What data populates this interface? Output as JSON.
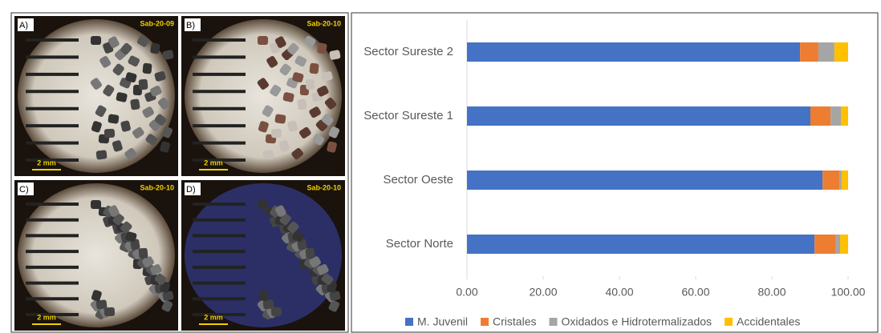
{
  "panels": [
    {
      "letter": "A)",
      "sample": "Sab-20-09",
      "scale": "2 mm"
    },
    {
      "letter": "B)",
      "sample": "Sab-20-10",
      "scale": "2 mm"
    },
    {
      "letter": "C)",
      "sample": "Sab-20-10",
      "scale": "2 mm"
    },
    {
      "letter": "D)",
      "sample": "Sab-20-10",
      "scale": "2 mm"
    }
  ],
  "chart_data": {
    "type": "stacked-barh",
    "categories": [
      "Sector Norte",
      "Sector Oeste",
      "Sector Sureste 1",
      "Sector Sureste 2"
    ],
    "series": [
      {
        "name": "M. Juvenil",
        "color": "#4472c4",
        "values": [
          91.2,
          93.3,
          90.1,
          87.4
        ]
      },
      {
        "name": "Cristales",
        "color": "#ed7d31",
        "values": [
          5.6,
          4.4,
          5.3,
          4.8
        ]
      },
      {
        "name": "Oxidados e Hidrotermalizados",
        "color": "#a5a5a5",
        "values": [
          1.1,
          0.6,
          2.7,
          4.2
        ]
      },
      {
        "name": "Accidentales",
        "color": "#ffc000",
        "values": [
          2.1,
          1.7,
          1.9,
          3.6
        ]
      }
    ],
    "xlim": [
      0,
      100
    ],
    "xticks": [
      {
        "value": 0,
        "label": "0.00"
      },
      {
        "value": 20,
        "label": "20.00"
      },
      {
        "value": 40,
        "label": "40.00"
      },
      {
        "value": 60,
        "label": "60.00"
      },
      {
        "value": 80,
        "label": "80.00"
      },
      {
        "value": 100,
        "label": "100.00"
      }
    ],
    "legend": "bottom"
  }
}
